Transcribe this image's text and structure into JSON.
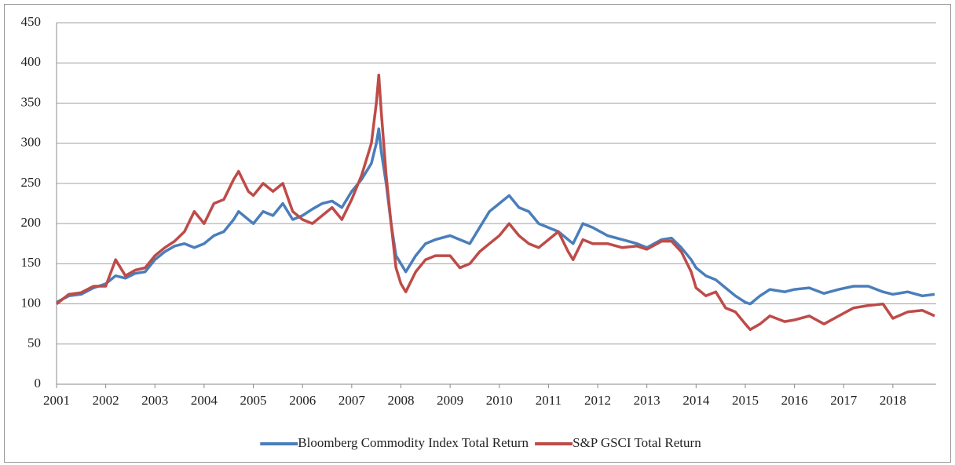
{
  "chart_data": {
    "type": "line",
    "x": [
      2001.0,
      2001.25,
      2001.5,
      2001.75,
      2002.0,
      2002.2,
      2002.4,
      2002.6,
      2002.8,
      2003.0,
      2003.2,
      2003.4,
      2003.6,
      2003.8,
      2004.0,
      2004.2,
      2004.4,
      2004.6,
      2004.7,
      2004.9,
      2005.0,
      2005.2,
      2005.4,
      2005.6,
      2005.8,
      2006.0,
      2006.2,
      2006.4,
      2006.6,
      2006.8,
      2007.0,
      2007.2,
      2007.4,
      2007.5,
      2007.55,
      2007.6,
      2007.7,
      2007.8,
      2007.9,
      2008.0,
      2008.1,
      2008.3,
      2008.5,
      2008.7,
      2009.0,
      2009.2,
      2009.4,
      2009.6,
      2009.8,
      2010.0,
      2010.2,
      2010.4,
      2010.6,
      2010.8,
      2011.0,
      2011.2,
      2011.4,
      2011.5,
      2011.7,
      2011.9,
      2012.2,
      2012.5,
      2012.8,
      2013.0,
      2013.3,
      2013.5,
      2013.7,
      2013.9,
      2014.0,
      2014.2,
      2014.4,
      2014.6,
      2014.8,
      2015.0,
      2015.1,
      2015.3,
      2015.5,
      2015.8,
      2016.0,
      2016.3,
      2016.6,
      2016.9,
      2017.2,
      2017.5,
      2017.8,
      2018.0,
      2018.3,
      2018.6,
      2018.85
    ],
    "series": [
      {
        "name": "Bloomberg Commodity Index Total Return",
        "color": "#4a7ebb",
        "values": [
          102,
          110,
          112,
          120,
          125,
          135,
          132,
          138,
          140,
          155,
          165,
          172,
          175,
          170,
          175,
          185,
          190,
          205,
          215,
          205,
          200,
          215,
          210,
          225,
          205,
          210,
          218,
          225,
          228,
          220,
          240,
          255,
          275,
          300,
          318,
          290,
          250,
          200,
          160,
          150,
          140,
          160,
          175,
          180,
          185,
          180,
          175,
          195,
          215,
          225,
          235,
          220,
          215,
          200,
          195,
          190,
          180,
          175,
          200,
          195,
          185,
          180,
          175,
          170,
          180,
          182,
          170,
          155,
          145,
          135,
          130,
          120,
          110,
          102,
          100,
          110,
          118,
          115,
          118,
          120,
          113,
          118,
          122,
          122,
          115,
          112,
          115,
          110,
          112
        ]
      },
      {
        "name": "S&P GSCI Total Return",
        "color": "#be4b48",
        "values": [
          100,
          112,
          114,
          122,
          122,
          155,
          135,
          142,
          145,
          160,
          170,
          178,
          190,
          215,
          200,
          225,
          230,
          255,
          265,
          240,
          235,
          250,
          240,
          250,
          215,
          205,
          200,
          210,
          220,
          205,
          230,
          260,
          300,
          350,
          385,
          340,
          260,
          200,
          145,
          125,
          115,
          140,
          155,
          160,
          160,
          145,
          150,
          165,
          175,
          185,
          200,
          185,
          175,
          170,
          180,
          190,
          165,
          155,
          180,
          175,
          175,
          170,
          172,
          168,
          178,
          178,
          165,
          140,
          120,
          110,
          115,
          95,
          90,
          75,
          68,
          75,
          85,
          78,
          80,
          85,
          75,
          85,
          95,
          98,
          100,
          82,
          90,
          92,
          85
        ]
      }
    ],
    "xlim": [
      2001,
      2018.88
    ],
    "xticks": [
      2001,
      2002,
      2003,
      2004,
      2005,
      2006,
      2007,
      2008,
      2009,
      2010,
      2011,
      2012,
      2013,
      2014,
      2015,
      2016,
      2017,
      2018
    ],
    "ylim": [
      0,
      450
    ],
    "yticks": [
      0,
      50,
      100,
      150,
      200,
      250,
      300,
      350,
      400,
      450
    ],
    "grid": true,
    "legend": "bottom"
  }
}
